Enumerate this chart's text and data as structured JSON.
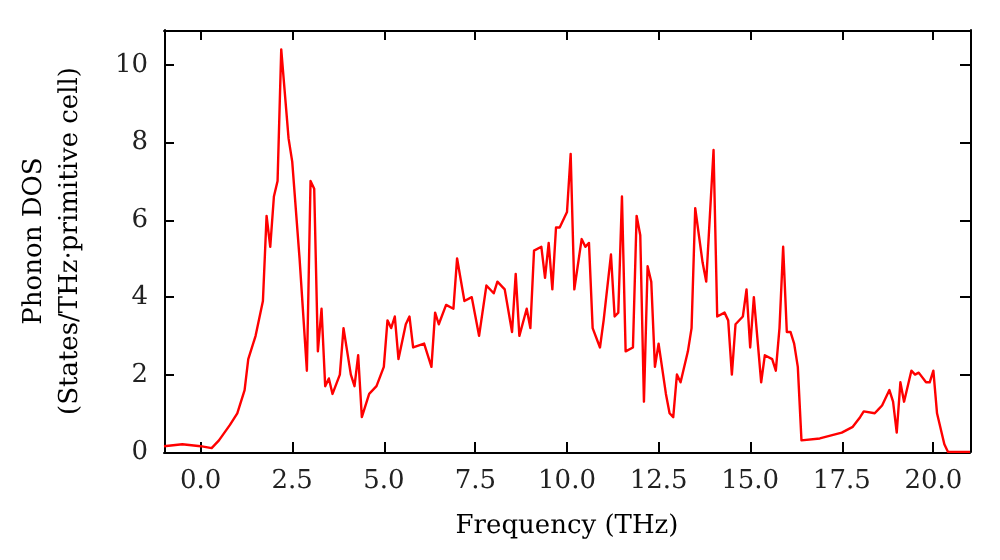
{
  "chart_data": {
    "type": "line",
    "xlabel": "Frequency (THz)",
    "ylabel": "Phonon DOS\n(States/THz·primitive cell)",
    "x": [
      -1,
      -0.5,
      0,
      0.3,
      0.5,
      0.8,
      1.0,
      1.2,
      1.3,
      1.5,
      1.7,
      1.8,
      1.9,
      2.0,
      2.1,
      2.2,
      2.4,
      2.5,
      2.7,
      2.9,
      3.0,
      3.1,
      3.2,
      3.3,
      3.4,
      3.5,
      3.6,
      3.8,
      3.9,
      4.1,
      4.2,
      4.3,
      4.4,
      4.6,
      4.8,
      5.0,
      5.1,
      5.2,
      5.3,
      5.4,
      5.6,
      5.7,
      5.8,
      6.1,
      6.3,
      6.4,
      6.5,
      6.7,
      6.9,
      7.0,
      7.2,
      7.4,
      7.5,
      7.6,
      7.8,
      8.0,
      8.1,
      8.3,
      8.5,
      8.6,
      8.7,
      8.9,
      9.0,
      9.1,
      9.3,
      9.4,
      9.5,
      9.6,
      9.7,
      9.8,
      10.0,
      10.1,
      10.2,
      10.4,
      10.5,
      10.6,
      10.7,
      10.9,
      11.0,
      11.2,
      11.3,
      11.4,
      11.5,
      11.6,
      11.8,
      11.9,
      12.0,
      12.1,
      12.2,
      12.3,
      12.4,
      12.5,
      12.7,
      12.8,
      12.9,
      13.0,
      13.1,
      13.3,
      13.4,
      13.5,
      13.7,
      13.8,
      14.0,
      14.1,
      14.3,
      14.4,
      14.5,
      14.6,
      14.8,
      14.9,
      15.0,
      15.1,
      15.3,
      15.4,
      15.6,
      15.7,
      15.8,
      15.9,
      16.0,
      16.1,
      16.2,
      16.3,
      16.4,
      16.9,
      17.5,
      17.8,
      18.0,
      18.1,
      18.4,
      18.5,
      18.6,
      18.8,
      18.9,
      19.0,
      19.1,
      19.2,
      19.4,
      19.5,
      19.6,
      19.8,
      19.9,
      20.0,
      20.1,
      20.3,
      20.4,
      21
    ],
    "series": [
      {
        "color": "#ff0000",
        "values": [
          0.15,
          0.2,
          0.15,
          0.1,
          0.3,
          0.7,
          1.0,
          1.6,
          2.4,
          3.0,
          3.9,
          6.1,
          5.3,
          6.6,
          7.0,
          10.4,
          8.1,
          7.5,
          5.0,
          2.1,
          7.0,
          6.8,
          2.6,
          3.7,
          1.7,
          1.9,
          1.5,
          2.0,
          3.2,
          2.0,
          1.7,
          2.5,
          0.9,
          1.5,
          1.7,
          2.2,
          3.4,
          3.2,
          3.5,
          2.4,
          3.3,
          3.5,
          2.7,
          2.8,
          2.2,
          3.6,
          3.3,
          3.8,
          3.7,
          5.0,
          3.9,
          4.0,
          3.5,
          3.0,
          4.3,
          4.1,
          4.4,
          4.2,
          3.1,
          4.6,
          3.0,
          3.7,
          3.2,
          5.2,
          5.3,
          4.5,
          5.4,
          4.2,
          5.8,
          5.8,
          6.2,
          7.7,
          4.2,
          5.5,
          5.3,
          5.4,
          3.2,
          2.7,
          3.4,
          5.1,
          3.5,
          3.6,
          6.6,
          2.6,
          2.7,
          6.1,
          5.6,
          1.3,
          4.8,
          4.4,
          2.2,
          2.8,
          1.5,
          1.0,
          0.9,
          2.0,
          1.8,
          2.6,
          3.2,
          6.3,
          4.9,
          4.4,
          7.8,
          3.5,
          3.6,
          3.4,
          2.0,
          3.3,
          3.5,
          4.2,
          2.7,
          4.0,
          1.8,
          2.5,
          2.4,
          2.1,
          3.2,
          5.3,
          3.1,
          3.1,
          2.8,
          2.2,
          0.3,
          0.35,
          0.5,
          0.65,
          0.9,
          1.05,
          1.0,
          1.1,
          1.2,
          1.6,
          1.3,
          0.5,
          1.8,
          1.3,
          2.1,
          2.0,
          2.05,
          1.8,
          1.8,
          2.1,
          1.0,
          0.2,
          0,
          0
        ]
      }
    ],
    "xlim": [
      -1,
      21
    ],
    "ylim": [
      0,
      10.9
    ],
    "xticks": [
      {
        "value": 0,
        "label": "0.0"
      },
      2.5,
      {
        "value": 5,
        "label": "5.0"
      },
      7.5,
      {
        "value": 10,
        "label": "10.0"
      },
      12.5,
      {
        "value": 15,
        "label": "15.0"
      },
      17.5,
      {
        "value": 20,
        "label": "20.0"
      }
    ],
    "yticks": [
      0,
      2,
      4,
      6,
      8,
      10
    ],
    "marker": "none",
    "line_style": "solid",
    "grid": false
  }
}
